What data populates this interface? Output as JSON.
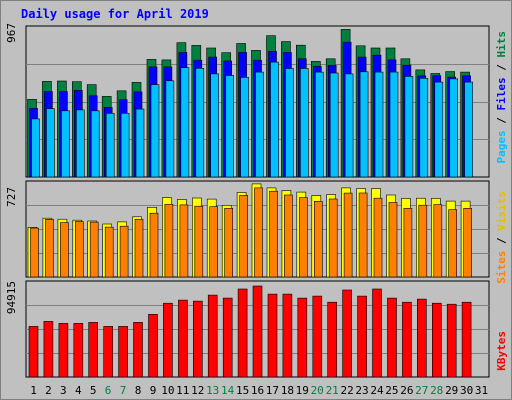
{
  "title": "Daily usage for April 2019",
  "panels": {
    "top": {
      "max_label": "967",
      "legend": [
        "Pages",
        "Files",
        "Hits"
      ],
      "legend_sep": " / "
    },
    "middle": {
      "max_label": "727",
      "legend": [
        "Sites",
        "Visits"
      ],
      "legend_sep": " / "
    },
    "bottom": {
      "max_label": "94915",
      "legend": [
        "KBytes"
      ]
    }
  },
  "colors": {
    "hits": "#008040",
    "files": "#0000ff",
    "pages": "#00c0ff",
    "visits": "#ffff00",
    "sites": "#ff8000",
    "kbytes": "#ff0000",
    "weekday_label": "#000000",
    "weekend_label": "#008040",
    "title": "#0000ff"
  },
  "chart_data": [
    {
      "type": "bar",
      "title": "Daily usage for April 2019",
      "categories": [
        "1",
        "2",
        "3",
        "4",
        "5",
        "6",
        "7",
        "8",
        "9",
        "10",
        "11",
        "12",
        "13",
        "14",
        "15",
        "16",
        "17",
        "18",
        "19",
        "20",
        "21",
        "22",
        "23",
        "24",
        "25",
        "26",
        "27",
        "28",
        "29",
        "30",
        "31"
      ],
      "weekend_days": [
        "6",
        "7",
        "13",
        "14",
        "20",
        "21",
        "27",
        "28"
      ],
      "ylim": [
        0,
        967
      ],
      "series": [
        {
          "name": "Hits",
          "values": [
            497,
            612,
            615,
            610,
            592,
            516,
            552,
            606,
            753,
            750,
            860,
            843,
            826,
            796,
            855,
            811,
            905,
            867,
            844,
            740,
            757,
            945,
            840,
            826,
            826,
            757,
            686,
            663,
            675,
            672,
            null
          ]
        },
        {
          "name": "Files",
          "values": [
            440,
            547,
            547,
            555,
            520,
            446,
            495,
            545,
            705,
            705,
            798,
            748,
            768,
            743,
            798,
            748,
            805,
            797,
            757,
            708,
            715,
            863,
            768,
            780,
            750,
            716,
            648,
            649,
            640,
            648,
            null
          ]
        },
        {
          "name": "Pages",
          "values": [
            372,
            438,
            424,
            430,
            424,
            408,
            408,
            435,
            592,
            616,
            700,
            696,
            660,
            650,
            638,
            672,
            736,
            695,
            695,
            672,
            666,
            660,
            674,
            672,
            672,
            644,
            632,
            608,
            628,
            608,
            null
          ]
        }
      ]
    },
    {
      "type": "bar",
      "categories": [
        "1",
        "2",
        "3",
        "4",
        "5",
        "6",
        "7",
        "8",
        "9",
        "10",
        "11",
        "12",
        "13",
        "14",
        "15",
        "16",
        "17",
        "18",
        "19",
        "20",
        "21",
        "22",
        "23",
        "24",
        "25",
        "26",
        "27",
        "28",
        "29",
        "30",
        "31"
      ],
      "ylim": [
        0,
        727
      ],
      "series": [
        {
          "name": "Visits",
          "values": [
            376,
            445,
            438,
            430,
            424,
            401,
            417,
            456,
            528,
            601,
            588,
            598,
            590,
            543,
            640,
            705,
            675,
            654,
            643,
            617,
            625,
            675,
            670,
            670,
            621,
            595,
            597,
            595,
            575,
            575,
            null
          ]
        },
        {
          "name": "Sites",
          "values": [
            370,
            437,
            412,
            420,
            416,
            378,
            385,
            437,
            483,
            550,
            546,
            536,
            532,
            520,
            618,
            675,
            650,
            621,
            601,
            573,
            591,
            635,
            636,
            597,
            564,
            520,
            544,
            548,
            510,
            520,
            null
          ]
        }
      ]
    },
    {
      "type": "bar",
      "categories": [
        "1",
        "2",
        "3",
        "4",
        "5",
        "6",
        "7",
        "8",
        "9",
        "10",
        "11",
        "12",
        "13",
        "14",
        "15",
        "16",
        "17",
        "18",
        "19",
        "20",
        "21",
        "22",
        "23",
        "24",
        "25",
        "26",
        "27",
        "28",
        "29",
        "30",
        "31"
      ],
      "ylim": [
        0,
        94915
      ],
      "series": [
        {
          "name": "KBytes",
          "values": [
            50000,
            55000,
            53000,
            53000,
            54000,
            50000,
            50000,
            54000,
            62000,
            73000,
            76000,
            75000,
            81000,
            78000,
            87000,
            90000,
            82000,
            82000,
            78000,
            80000,
            74000,
            86000,
            80000,
            87000,
            78000,
            74000,
            77000,
            73000,
            72000,
            74000,
            null
          ]
        }
      ]
    }
  ]
}
